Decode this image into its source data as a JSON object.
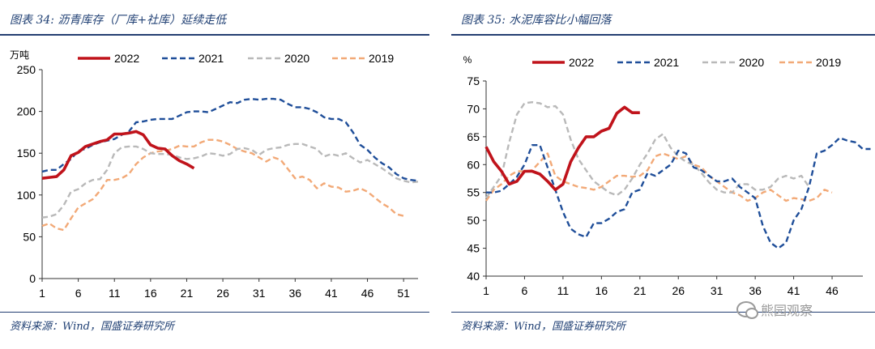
{
  "watermark": "熊园观察",
  "chart_data": [
    {
      "type": "line",
      "title": "图表 34:  沥青库存（厂库+社库）延续走低",
      "source": "资料来源：Wind，国盛证券研究所",
      "ylabel": "万吨",
      "xlabel": "",
      "ylim": [
        0,
        250
      ],
      "yticks": [
        0,
        50,
        100,
        150,
        200,
        250
      ],
      "xlim": [
        1,
        53
      ],
      "xticks": [
        1,
        6,
        11,
        16,
        21,
        26,
        31,
        36,
        41,
        46,
        51
      ],
      "legend_position": "top",
      "series": [
        {
          "name": "2022",
          "color": "#c0131b",
          "style": "solid",
          "values": [
            120,
            121,
            122,
            130,
            147,
            151,
            158,
            161,
            164,
            166,
            173,
            173,
            174,
            176,
            172,
            160,
            156,
            155,
            147,
            141,
            137,
            132
          ]
        },
        {
          "name": "2021",
          "color": "#1f4e99",
          "style": "dashed",
          "values": [
            128,
            130,
            130,
            137,
            143,
            153,
            155,
            160,
            163,
            165,
            167,
            172,
            176,
            187,
            188,
            190,
            191,
            191,
            191,
            195,
            199,
            200,
            200,
            199,
            203,
            207,
            211,
            210,
            214,
            215,
            214,
            215,
            215,
            214,
            209,
            205,
            205,
            203,
            199,
            193,
            191,
            191,
            187,
            175,
            160,
            154,
            145,
            138,
            133,
            125,
            120,
            118,
            117
          ]
        },
        {
          "name": "2020",
          "color": "#b9b9b9",
          "style": "dashed",
          "values": [
            73,
            74,
            77,
            88,
            104,
            107,
            114,
            118,
            119,
            130,
            150,
            157,
            158,
            158,
            155,
            150,
            149,
            149,
            148,
            145,
            143,
            144,
            146,
            150,
            149,
            147,
            149,
            155,
            156,
            154,
            148,
            154,
            156,
            157,
            160,
            161,
            161,
            158,
            155,
            146,
            149,
            147,
            150,
            144,
            139,
            142,
            137,
            132,
            126,
            120,
            117,
            115,
            116
          ]
        },
        {
          "name": "2019",
          "color": "#f2a977",
          "style": "dashed",
          "values": [
            63,
            66,
            60,
            58,
            72,
            85,
            90,
            95,
            105,
            118,
            118,
            120,
            125,
            137,
            145,
            150,
            152,
            153,
            155,
            159,
            158,
            158,
            163,
            166,
            166,
            164,
            160,
            155,
            152,
            150,
            145,
            140,
            145,
            142,
            131,
            120,
            122,
            118,
            108,
            114,
            110,
            109,
            104,
            105,
            108,
            104,
            97,
            90,
            85,
            77,
            75
          ]
        }
      ]
    },
    {
      "type": "line",
      "title": "图表 35:  水泥库容比小幅回落",
      "source": "资料来源：Wind，国盛证券研究所",
      "ylabel": "%",
      "xlabel": "",
      "ylim": [
        40,
        75
      ],
      "yticks": [
        40,
        45,
        50,
        55,
        60,
        65,
        70,
        75
      ],
      "xlim": [
        1,
        50
      ],
      "xticks": [
        1,
        6,
        11,
        16,
        21,
        26,
        31,
        36,
        41,
        46
      ],
      "legend_position": "top",
      "series": [
        {
          "name": "2022",
          "color": "#c0131b",
          "style": "solid",
          "values": [
            63.2,
            60.5,
            58.8,
            56.5,
            57.0,
            58.8,
            58.8,
            58.3,
            57.0,
            55.5,
            56.5,
            60.5,
            63.0,
            65.0,
            65.0,
            66.0,
            66.5,
            69.2,
            70.3,
            69.3,
            69.3
          ]
        },
        {
          "name": "2021",
          "color": "#1f4e99",
          "style": "dashed",
          "values": [
            55.0,
            55.0,
            55.3,
            56.5,
            57.8,
            60.0,
            63.5,
            63.5,
            59.5,
            55.5,
            51.5,
            48.5,
            47.5,
            47.0,
            49.5,
            49.5,
            50.3,
            51.5,
            52.0,
            55.0,
            55.5,
            58.5,
            58.0,
            59.0,
            60.0,
            62.5,
            62.0,
            59.5,
            59.0,
            58.0,
            57.0,
            57.0,
            57.5,
            56.0,
            55.0,
            54.0,
            49.0,
            46.0,
            45.0,
            46.0,
            50.0,
            52.0,
            56.0,
            62.0,
            62.5,
            63.5,
            64.8,
            64.3,
            64.0,
            62.8,
            62.8
          ]
        },
        {
          "name": "2020",
          "color": "#b9b9b9",
          "style": "dashed",
          "values": [
            54.0,
            56.0,
            58.0,
            64.0,
            69.0,
            71.0,
            71.2,
            71.0,
            70.3,
            70.5,
            69.0,
            64.5,
            61.0,
            59.0,
            57.0,
            56.0,
            55.0,
            54.5,
            55.5,
            57.5,
            60.0,
            62.0,
            64.5,
            65.5,
            63.0,
            61.5,
            60.5,
            60.0,
            58.5,
            56.8,
            55.5,
            55.0,
            55.0,
            56.5,
            56.5,
            55.5,
            55.5,
            56.0,
            57.5,
            58.0,
            57.5,
            58.0,
            56.0
          ]
        },
        {
          "name": "2019",
          "color": "#f2a977",
          "style": "dashed",
          "values": [
            53.5,
            55.5,
            56.5,
            58.0,
            58.8,
            58.8,
            59.0,
            60.5,
            62.0,
            58.0,
            57.0,
            56.5,
            56.0,
            55.8,
            55.5,
            56.0,
            57.0,
            58.0,
            58.0,
            57.8,
            58.0,
            59.0,
            61.5,
            62.0,
            61.5,
            61.0,
            61.5,
            60.0,
            59.5,
            58.0,
            57.0,
            56.0,
            55.0,
            54.5,
            53.5,
            54.0,
            55.0,
            55.5,
            54.5,
            53.5,
            54.0,
            53.8,
            53.5,
            54.0,
            55.5,
            55.0
          ]
        }
      ]
    }
  ]
}
